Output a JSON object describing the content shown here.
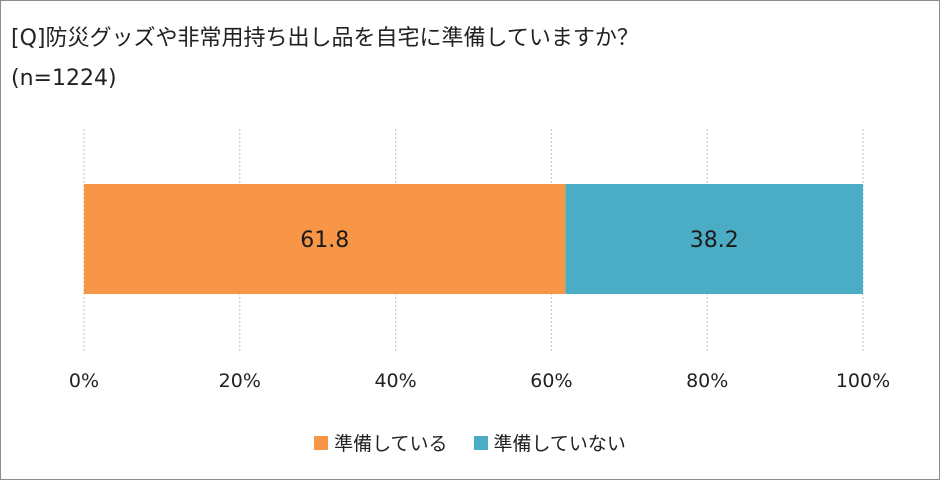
{
  "chart_data": {
    "type": "bar",
    "orientation": "horizontal",
    "stacked": true,
    "title": "[Q]防災グッズや非常用持ち出し品を自宅に準備していますか？",
    "subtitle": "(n=1224)",
    "categories": [
      ""
    ],
    "series": [
      {
        "name": "準備している",
        "values": [
          61.8
        ],
        "color": "#f79646",
        "label": "61.8"
      },
      {
        "name": "準備していない",
        "values": [
          38.2
        ],
        "color": "#4bacc6",
        "label": "38.2"
      }
    ],
    "xlim": [
      0,
      100
    ],
    "x_ticks": [
      0,
      20,
      40,
      60,
      80,
      100
    ],
    "x_tick_labels": [
      "0%",
      "20%",
      "40%",
      "60%",
      "80%",
      "100%"
    ],
    "grid": true,
    "grid_style": "dotted-vertical",
    "legend_position": "bottom-center"
  }
}
